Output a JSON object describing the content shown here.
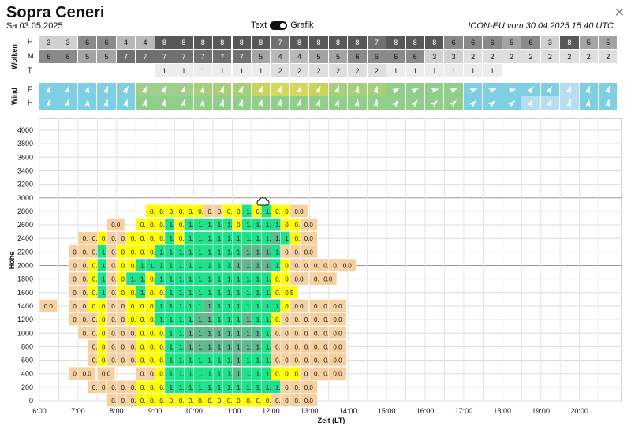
{
  "header": {
    "title": "Sopra Ceneri",
    "date": "Sa 03.05.2025",
    "toggle_left": "Text",
    "toggle_right": "Grafik",
    "model_info": "ICON-EU vom 30.04.2025 15:40 UTC",
    "close": "✕"
  },
  "clouds": {
    "label": "Wolken",
    "rows": [
      {
        "key": "H",
        "values": [
          "3",
          "3",
          "6",
          "6",
          "4",
          "4",
          "8",
          "8",
          "8",
          "8",
          "8",
          "8",
          "7",
          "8",
          "8",
          "8",
          "8",
          "7",
          "8",
          "8",
          "8",
          "6",
          "6",
          "6",
          "5",
          "6",
          "3",
          "8",
          "5",
          "5"
        ]
      },
      {
        "key": "M",
        "values": [
          "6",
          "6",
          "5",
          "5",
          "7",
          "7",
          "7",
          "7",
          "7",
          "7",
          "7",
          "5",
          "4",
          "4",
          "5",
          "5",
          "6",
          "6",
          "6",
          "6",
          "3",
          "3",
          "2",
          "2",
          "2",
          "2",
          "2",
          "2",
          "2",
          "2"
        ]
      },
      {
        "key": "T",
        "values": [
          "",
          "",
          "",
          "",
          "",
          "",
          "1",
          "1",
          "1",
          "1",
          "1",
          "1",
          "2",
          "2",
          "2",
          "2",
          "2",
          "2",
          "1",
          "1",
          "1",
          "1",
          "1",
          "1",
          "",
          "",
          "",
          "",
          "",
          ""
        ]
      }
    ]
  },
  "wind": {
    "label": "Wind",
    "rows": [
      {
        "key": "F",
        "colors": [
          "#7dcfe3",
          "#7dcfe3",
          "#7dcfe3",
          "#7dcfe3",
          "#7fd0db",
          "#9fcf8a",
          "#9fcf8a",
          "#9fcf8a",
          "#a7cf7a",
          "#a7cf7a",
          "#a7cf7a",
          "#c8d45a",
          "#d5d85a",
          "#d5d85a",
          "#c8d45a",
          "#a7cf7a",
          "#a7cf7a",
          "#a7cf7a",
          "#8fcf8a",
          "#8fcf8a",
          "#8fcf8a",
          "#8fcf8a",
          "#7dcfe3",
          "#7dcfe3",
          "#7dcfe3",
          "#7dcfe3",
          "#7dcfe3",
          "#b5dff0",
          "#7dcfe3",
          "#7dcfe3"
        ]
      },
      {
        "key": "H",
        "colors": [
          "#7dcfe3",
          "#7dcfe3",
          "#7dcfe3",
          "#7dcfe3",
          "#7dcfe3",
          "#8fcf8a",
          "#8fcf8a",
          "#8fcf8a",
          "#8fcf8a",
          "#8fcf8a",
          "#8fcf8a",
          "#8fcf8a",
          "#8fcf8a",
          "#8fcf8a",
          "#8fcf8a",
          "#8fcf8a",
          "#8fcf8a",
          "#8fcf8a",
          "#8fcf8a",
          "#8fcf8a",
          "#8fcf8a",
          "#8fcf8a",
          "#7dcfe3",
          "#7dcfe3",
          "#7dcfe3",
          "#b5dff0",
          "#b5dff0",
          "#b5dff0",
          "#7dcfe3",
          "#7dcfe3"
        ]
      }
    ]
  },
  "colors": {
    "0.0": "#f7d0a0",
    "0.5": "#ffff00",
    "1.0": "#1de28a",
    "1.5": "#60b88e"
  },
  "chart_data": {
    "type": "heatmap",
    "ylabel": "Höhe",
    "xlabel": "Zeit (LT)",
    "y_ticks": [
      "0",
      "200",
      "400",
      "600",
      "800",
      "1000",
      "1200",
      "1400",
      "1600",
      "1800",
      "2000",
      "2200",
      "2400",
      "2600",
      "2800",
      "3000",
      "3200",
      "3400",
      "3600",
      "3800",
      "4000"
    ],
    "x_ticks": [
      "6:00",
      "7:00",
      "8:00",
      "9:00",
      "10:00",
      "11:00",
      "12:00",
      "13:00",
      "14:00",
      "15:00",
      "16:00",
      "17:00",
      "18:00",
      "19:00",
      "20:00"
    ],
    "ylim": [
      0,
      4100
    ],
    "warning_icon": "cloud-warning-icon",
    "rows": [
      {
        "alt": 2800,
        "values": [
          "",
          "",
          "",
          "",
          "",
          "",
          "",
          "",
          "",
          "",
          "",
          "0.5",
          "0.5",
          "0.5",
          "0.5",
          "0.5",
          "0.5",
          "0.0",
          "0.0",
          "0.5",
          "0.5",
          "1.0",
          "0.5",
          "1.0",
          "0.5",
          "0.5",
          "0.0",
          "",
          "",
          "",
          "",
          "",
          "",
          ""
        ]
      },
      {
        "alt": 2600,
        "values": [
          "",
          "",
          "",
          "",
          "",
          "",
          "",
          "0.0",
          "",
          "",
          "0.5",
          "0.5",
          "0.5",
          "1.0",
          "0.5",
          "1.0",
          "1.0",
          "1.0",
          "1.0",
          "1.0",
          "0.5",
          "1.0",
          "1.0",
          "1.0",
          "1.0",
          "0.5",
          "0.5",
          "0.0",
          "",
          "",
          "",
          "",
          "",
          ""
        ]
      },
      {
        "alt": 2400,
        "values": [
          "",
          "",
          "",
          "",
          "0.0",
          "0.0",
          "0.5",
          "0.0",
          "0.0",
          "0.5",
          "0.5",
          "0.5",
          "0.5",
          "1.0",
          "0.5",
          "1.0",
          "1.0",
          "1.0",
          "1.0",
          "1.0",
          "1.0",
          "1.0",
          "1.0",
          "1.0",
          "1.5",
          "1.0",
          "0.5",
          "0.0",
          "",
          "",
          "",
          "",
          "",
          ""
        ]
      },
      {
        "alt": 2200,
        "values": [
          "",
          "",
          "",
          "0.0",
          "0.0",
          "0.0",
          "1.0",
          "0.0",
          "0.5",
          "0.5",
          "0.5",
          "0.5",
          "1.0",
          "1.0",
          "1.0",
          "1.0",
          "1.0",
          "1.0",
          "1.0",
          "1.0",
          "1.0",
          "1.5",
          "1.5",
          "1.5",
          "1.0",
          "0.0",
          "0.0",
          "0.0",
          "",
          "",
          "",
          "",
          "",
          ""
        ]
      },
      {
        "alt": 2000,
        "values": [
          "",
          "",
          "",
          "0.0",
          "0.0",
          "0.5",
          "1.0",
          "0.0",
          "0.5",
          "0.5",
          "1.0",
          "1.0",
          "1.0",
          "1.0",
          "1.0",
          "1.0",
          "1.0",
          "1.0",
          "1.0",
          "1.0",
          "1.5",
          "1.5",
          "1.5",
          "1.5",
          "1.0",
          "0.5",
          "0.0",
          "0.0",
          "0.0",
          "0.0",
          "0.0",
          "0.0",
          "",
          ""
        ]
      },
      {
        "alt": 1800,
        "values": [
          "",
          "",
          "",
          "0.0",
          "0.0",
          "0.5",
          "1.0",
          "0.0",
          "0.5",
          "1.0",
          "1.0",
          "0.5",
          "1.0",
          "1.0",
          "1.0",
          "1.0",
          "1.0",
          "1.0",
          "1.0",
          "1.0",
          "1.0",
          "1.0",
          "1.0",
          "1.0",
          "0.5",
          "0.5",
          "0.0",
          "",
          "0.0",
          "0.0",
          "",
          "",
          "",
          ""
        ]
      },
      {
        "alt": 1600,
        "values": [
          "",
          "",
          "",
          "0.0",
          "0.0",
          "0.5",
          "1.0",
          "0.0",
          "0.5",
          "0.5",
          "1.0",
          "0.5",
          "0.5",
          "1.0",
          "1.0",
          "1.0",
          "1.0",
          "1.0",
          "1.0",
          "1.0",
          "1.0",
          "1.0",
          "1.0",
          "1.0",
          "0.5",
          "0.5",
          "",
          "",
          "",
          "",
          "",
          "",
          "",
          ""
        ]
      },
      {
        "alt": 1400,
        "values": [
          "0.0",
          "",
          "",
          "0.0",
          "0.0",
          "0.5",
          "0.5",
          "0.0",
          "0.0",
          "0.5",
          "0.5",
          "0.5",
          "1.0",
          "1.0",
          "1.0",
          "1.0",
          "1.0",
          "1.5",
          "1.0",
          "1.0",
          "1.0",
          "1.0",
          "1.0",
          "1.0",
          "1.0",
          "0.5",
          "0.0",
          "",
          "0.0",
          "0.0",
          "0.0",
          "",
          "",
          ""
        ]
      },
      {
        "alt": 1200,
        "values": [
          "",
          "",
          "",
          "0.0",
          "0.0",
          "0.0",
          "0.5",
          "0.0",
          "0.0",
          "0.5",
          "0.5",
          "0.5",
          "1.0",
          "1.0",
          "1.0",
          "1.0",
          "1.5",
          "1.5",
          "1.0",
          "1.0",
          "1.0",
          "1.5",
          "1.0",
          "1.0",
          "0.5",
          "0.0",
          "0.0",
          "0.0",
          "0.0",
          "0.0",
          "0.0",
          "",
          "",
          ""
        ]
      },
      {
        "alt": 1000,
        "values": [
          "",
          "",
          "",
          "",
          "0.0",
          "0.0",
          "0.5",
          "0.0",
          "0.0",
          "0.0",
          "0.5",
          "0.5",
          "0.5",
          "1.0",
          "1.0",
          "1.5",
          "1.5",
          "1.5",
          "1.5",
          "1.5",
          "1.5",
          "1.5",
          "1.5",
          "1.0",
          "0.0",
          "0.0",
          "0.0",
          "0.0",
          "0.0",
          "0.0",
          "0.0",
          "",
          "",
          ""
        ]
      },
      {
        "alt": 800,
        "values": [
          "",
          "",
          "",
          "",
          "",
          "0.0",
          "0.5",
          "0.0",
          "0.0",
          "0.0",
          "0.5",
          "0.5",
          "0.5",
          "1.0",
          "1.0",
          "1.5",
          "1.5",
          "1.5",
          "1.5",
          "1.5",
          "1.5",
          "1.5",
          "1.5",
          "1.0",
          "0.0",
          "0.0",
          "0.0",
          "0.0",
          "0.0",
          "0.0",
          "0.0",
          "",
          "",
          ""
        ]
      },
      {
        "alt": 600,
        "values": [
          "",
          "",
          "",
          "",
          "",
          "0.0",
          "0.5",
          "0.0",
          "0.0",
          "0.0",
          "0.5",
          "0.5",
          "0.5",
          "1.0",
          "1.0",
          "1.0",
          "1.0",
          "1.0",
          "1.0",
          "1.0",
          "1.5",
          "1.0",
          "1.0",
          "1.0",
          "0.0",
          "0.0",
          "0.0",
          "0.0",
          "0.0",
          "0.0",
          "0.0",
          "",
          "",
          ""
        ]
      },
      {
        "alt": 400,
        "values": [
          "",
          "",
          "",
          "0.0",
          "0.0",
          "",
          "0.0",
          "",
          "",
          "",
          "0.0",
          "0.0",
          "0.5",
          "1.0",
          "1.0",
          "1.0",
          "1.0",
          "1.0",
          "1.0",
          "1.0",
          "1.5",
          "1.0",
          "1.0",
          "1.0",
          "0.5",
          "0.5",
          "0.5",
          "0.0",
          "0.0",
          "0.0",
          "0.0",
          "",
          "",
          ""
        ]
      },
      {
        "alt": 200,
        "values": [
          "",
          "",
          "",
          "",
          "",
          "0.0",
          "0.0",
          "0.0",
          "0.0",
          "0.0",
          "0.5",
          "0.5",
          "0.5",
          "1.0",
          "1.0",
          "1.0",
          "1.0",
          "1.0",
          "1.0",
          "1.0",
          "1.0",
          "1.0",
          "1.0",
          "1.0",
          "1.0",
          "0.0",
          "0.0",
          "0.0",
          "",
          "",
          "",
          "",
          "",
          ""
        ]
      },
      {
        "alt": 0,
        "values": [
          "",
          "",
          "",
          "",
          "",
          "",
          "",
          "0.0",
          "0.0",
          "0.0",
          "0.5",
          "0.5",
          "0.5",
          "0.5",
          "0.5",
          "0.5",
          "0.5",
          "0.5",
          "0.5",
          "0.5",
          "0.5",
          "0.5",
          "0.5",
          "0.5",
          "0.0",
          "0.0",
          "0.0",
          "0.0",
          "",
          "",
          "",
          "",
          "",
          ""
        ]
      }
    ]
  }
}
